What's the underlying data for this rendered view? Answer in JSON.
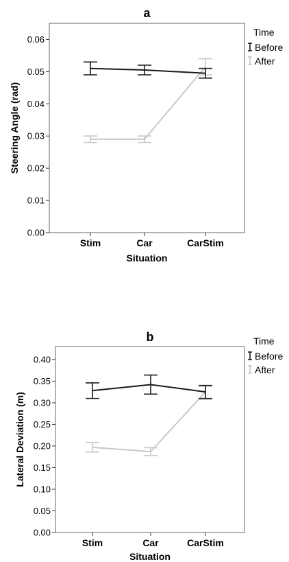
{
  "chart_data": [
    {
      "type": "line",
      "title": "a",
      "xlabel": "Situation",
      "ylabel": "Steering Angle (rad)",
      "categories": [
        "Stim",
        "Car",
        "CarStim"
      ],
      "ylim": [
        0,
        0.065
      ],
      "yticks": [
        "0.00",
        "0.01",
        "0.02",
        "0.03",
        "0.04",
        "0.05",
        "0.06"
      ],
      "legend_title": "Time",
      "legend_position": "right",
      "grid": false,
      "series": [
        {
          "name": "Before",
          "color": "#1a1a1a",
          "values": [
            0.051,
            0.0505,
            0.0495
          ],
          "err_low": [
            0.049,
            0.049,
            0.048
          ],
          "err_high": [
            0.053,
            0.052,
            0.051
          ]
        },
        {
          "name": "After",
          "color": "#c8c8c8",
          "values": [
            0.029,
            0.029,
            0.0515
          ],
          "err_low": [
            0.028,
            0.028,
            0.049
          ],
          "err_high": [
            0.03,
            0.03,
            0.054
          ]
        }
      ]
    },
    {
      "type": "line",
      "title": "b",
      "xlabel": "Situation",
      "ylabel": "Lateral Deviation (m)",
      "categories": [
        "Stim",
        "Car",
        "CarStim"
      ],
      "ylim": [
        0,
        0.43
      ],
      "yticks": [
        "0.00",
        "0.05",
        "0.10",
        "0.15",
        "0.20",
        "0.25",
        "0.30",
        "0.35",
        "0.40"
      ],
      "legend_title": "Time",
      "legend_position": "right",
      "grid": false,
      "series": [
        {
          "name": "Before",
          "color": "#1a1a1a",
          "values": [
            0.328,
            0.342,
            0.325
          ],
          "err_low": [
            0.31,
            0.32,
            0.31
          ],
          "err_high": [
            0.346,
            0.364,
            0.34
          ]
        },
        {
          "name": "After",
          "color": "#c8c8c8",
          "values": [
            0.197,
            0.187,
            0.325
          ],
          "err_low": [
            0.186,
            0.178,
            0.308
          ],
          "err_high": [
            0.208,
            0.196,
            0.338
          ]
        }
      ]
    }
  ]
}
